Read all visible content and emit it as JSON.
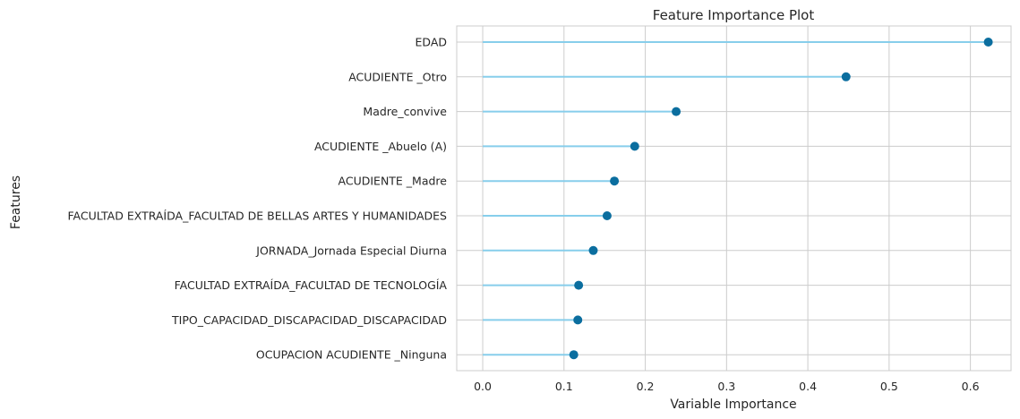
{
  "chart_data": {
    "type": "lollipop",
    "title": "Feature Importance Plot",
    "xlabel": "Variable Importance",
    "ylabel": "Features",
    "xlim": [
      -0.032,
      0.65
    ],
    "xticks": [
      "0.0",
      "0.1",
      "0.2",
      "0.3",
      "0.4",
      "0.5",
      "0.6"
    ],
    "xtick_values": [
      0.0,
      0.1,
      0.2,
      0.3,
      0.4,
      0.5,
      0.6
    ],
    "grid": true,
    "categories": [
      "EDAD",
      "ACUDIENTE _Otro",
      "Madre_convive",
      "ACUDIENTE _Abuelo (A)",
      "ACUDIENTE _Madre",
      "FACULTAD EXTRAÍDA_FACULTAD DE BELLAS ARTES Y HUMANIDADES",
      "JORNADA_Jornada Especial Diurna",
      "FACULTAD EXTRAÍDA_FACULTAD DE TECNOLOGÍA",
      "TIPO_CAPACIDAD_DISCAPACIDAD_DISCAPACIDAD",
      "OCUPACION ACUDIENTE _Ninguna"
    ],
    "values": [
      0.622,
      0.447,
      0.238,
      0.187,
      0.162,
      0.153,
      0.136,
      0.118,
      0.117,
      0.112
    ],
    "colors": {
      "stem": "#87ceeb",
      "marker": "#0b6e9f",
      "grid": "#cccccc",
      "background": "#ffffff"
    }
  }
}
